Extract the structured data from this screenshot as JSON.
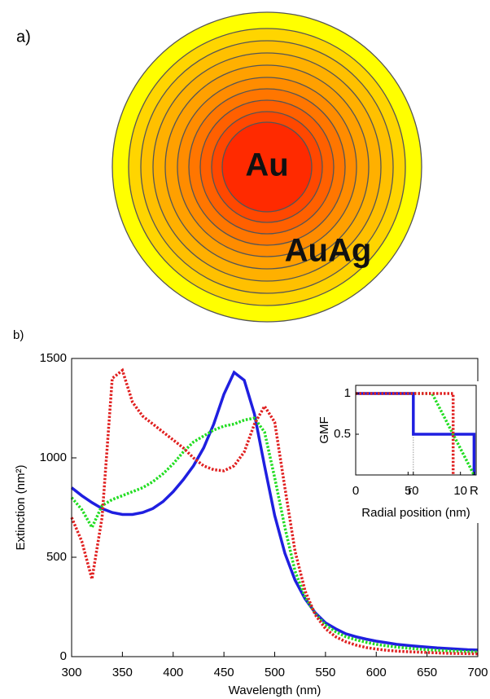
{
  "panel_a": {
    "label": "a)",
    "core_label": "Au",
    "shell_label": "AuAg"
  },
  "panel_b_label": "b)",
  "chart_data": [
    {
      "type": "line",
      "x_label": "Wavelength (nm)",
      "y_label": "Extinction (nm²)",
      "x": [
        300,
        310,
        320,
        330,
        340,
        350,
        360,
        370,
        380,
        390,
        400,
        410,
        420,
        430,
        440,
        450,
        460,
        470,
        480,
        490,
        500,
        510,
        520,
        530,
        540,
        550,
        560,
        570,
        580,
        590,
        600,
        610,
        620,
        630,
        640,
        650,
        660,
        670,
        680,
        690,
        700
      ],
      "xlim": [
        300,
        700
      ],
      "xticks": [
        300,
        350,
        400,
        450,
        500,
        550,
        600,
        650,
        700
      ],
      "ylim": [
        0,
        1500
      ],
      "yticks": [
        0,
        500,
        1000,
        1500
      ],
      "series": [
        {
          "color": "#1f1fe0",
          "style": "solid",
          "values": [
            850,
            810,
            775,
            745,
            725,
            715,
            715,
            725,
            745,
            780,
            830,
            890,
            960,
            1050,
            1170,
            1320,
            1430,
            1390,
            1220,
            960,
            710,
            520,
            385,
            290,
            220,
            170,
            140,
            115,
            100,
            88,
            78,
            70,
            62,
            57,
            52,
            48,
            44,
            41,
            38,
            35,
            33
          ]
        },
        {
          "color": "#22dd22",
          "style": "dotted",
          "values": [
            800,
            740,
            650,
            760,
            790,
            810,
            830,
            850,
            880,
            920,
            970,
            1030,
            1080,
            1110,
            1140,
            1160,
            1170,
            1190,
            1200,
            1130,
            900,
            650,
            430,
            300,
            215,
            160,
            125,
            100,
            85,
            72,
            62,
            54,
            48,
            43,
            39,
            35,
            32,
            29,
            27,
            25,
            23
          ]
        },
        {
          "color": "#e02020",
          "style": "dotted",
          "values": [
            700,
            580,
            390,
            700,
            1400,
            1440,
            1280,
            1210,
            1170,
            1130,
            1090,
            1050,
            1000,
            960,
            940,
            935,
            960,
            1030,
            1170,
            1260,
            1180,
            850,
            530,
            330,
            210,
            140,
            100,
            75,
            58,
            46,
            38,
            32,
            28,
            25,
            23,
            21,
            19,
            17,
            16,
            15,
            14
          ]
        }
      ]
    },
    {
      "type": "line",
      "x_label": "Radial position (nm)",
      "y_label": "GMF",
      "xlim": [
        0,
        11.5
      ],
      "xticks": [
        0,
        5,
        {
          "value": 5.5,
          "label": "r0"
        },
        10,
        {
          "value": 11.3,
          "label": "R"
        }
      ],
      "ylim": [
        0,
        1.1
      ],
      "yticks": [
        0.5,
        1
      ],
      "series": [
        {
          "color": "#1f1fe0",
          "style": "solid",
          "x": [
            0,
            5.5,
            5.5,
            11.3,
            11.3
          ],
          "values": [
            1,
            1,
            0.5,
            0.5,
            0
          ]
        },
        {
          "color": "#22dd22",
          "style": "dotted",
          "x": [
            0,
            7.3,
            11.3
          ],
          "values": [
            1,
            1,
            0
          ]
        },
        {
          "color": "#e02020",
          "style": "dotted",
          "x": [
            0,
            9.3,
            9.3
          ],
          "values": [
            1,
            1,
            0
          ]
        }
      ]
    }
  ]
}
